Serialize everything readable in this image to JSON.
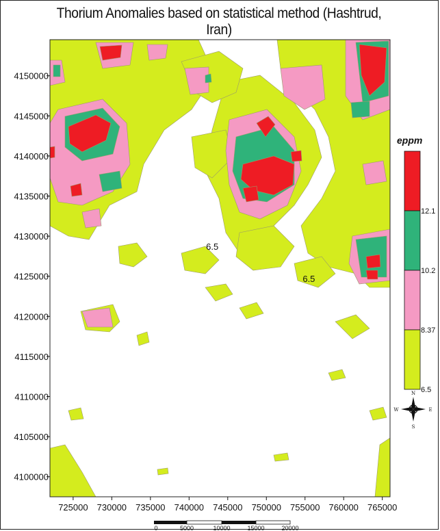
{
  "title": "Thorium Anomalies based on statistical method (Hashtrud, Iran)",
  "colors": {
    "class_low": "#d4ec1e",
    "class_mid": "#f59ac3",
    "class_high": "#2fb37a",
    "class_top": "#ee1c24",
    "background": "#ffffff"
  },
  "x_axis": {
    "ticks": [
      "725000",
      "730000",
      "735000",
      "740000",
      "745000",
      "750000",
      "755000",
      "760000",
      "765000"
    ],
    "range": [
      722000,
      766000
    ]
  },
  "y_axis": {
    "ticks": [
      "4100000",
      "4105000",
      "4110000",
      "4115000",
      "4120000",
      "4125000",
      "4130000",
      "4135000",
      "4140000",
      "4145000",
      "4150000"
    ],
    "range": [
      4097500,
      4154500
    ]
  },
  "legend": {
    "unit": "eppm",
    "breaks": [
      "12.1",
      "10.2",
      "8.37",
      "6.5"
    ],
    "classes": [
      {
        "color": "#ee1c24",
        "from": 12.1
      },
      {
        "color": "#2fb37a",
        "from": 10.2,
        "to": 12.1
      },
      {
        "color": "#f59ac3",
        "from": 8.37,
        "to": 10.2
      },
      {
        "color": "#d4ec1e",
        "from": 6.5,
        "to": 8.37
      }
    ]
  },
  "contour_labels": [
    {
      "text": "6.5",
      "x": 743000,
      "y": 4128300
    },
    {
      "text": "6.5",
      "x": 755500,
      "y": 4124300
    }
  ],
  "compass": {
    "n": "N",
    "s": "S",
    "e": "E",
    "w": "W"
  },
  "scale_bar": {
    "labels": [
      "0",
      "5000",
      "10000",
      "15000",
      "20000"
    ]
  }
}
